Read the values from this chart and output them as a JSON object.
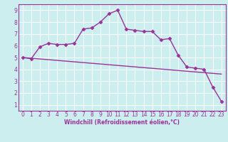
{
  "xlabel": "Windchill (Refroidissement éolien,°C)",
  "xlim": [
    -0.5,
    23.5
  ],
  "ylim": [
    0.5,
    9.5
  ],
  "xticks": [
    0,
    1,
    2,
    3,
    4,
    5,
    6,
    7,
    8,
    9,
    10,
    11,
    12,
    13,
    14,
    15,
    16,
    17,
    18,
    19,
    20,
    21,
    22,
    23
  ],
  "yticks": [
    1,
    2,
    3,
    4,
    5,
    6,
    7,
    8,
    9
  ],
  "line_color": "#993399",
  "bg_color": "#cceeee",
  "line1_x": [
    0,
    1,
    2,
    3,
    4,
    5,
    6,
    7,
    8,
    9,
    10,
    11,
    12,
    13,
    14,
    15,
    16,
    17,
    18,
    19,
    20,
    21,
    22,
    23
  ],
  "line1_y": [
    5.0,
    4.9,
    5.9,
    6.2,
    6.1,
    6.1,
    6.2,
    7.4,
    7.5,
    8.0,
    8.7,
    9.0,
    7.4,
    7.3,
    7.2,
    7.2,
    6.5,
    6.6,
    5.2,
    4.2,
    4.1,
    4.0,
    2.5,
    1.3
  ],
  "line2_x": [
    0,
    23
  ],
  "line2_y": [
    5.0,
    3.6
  ],
  "markersize": 2.5,
  "linewidth": 1.0,
  "xlabel_fontsize": 5.5,
  "tick_fontsize": 5.5,
  "grid_color": "#aadddd"
}
